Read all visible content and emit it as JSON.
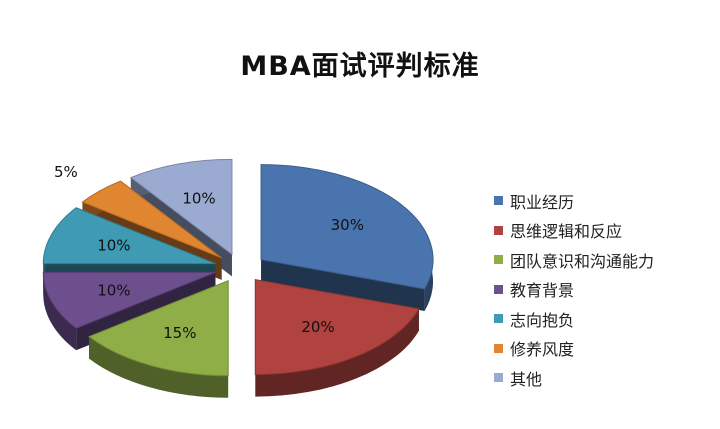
{
  "chart_data": {
    "type": "pie",
    "title": "MBA面试评判标准",
    "categories": [
      "职业经历",
      "思维逻辑和反应",
      "团队意识和沟通能力",
      "教育背景",
      "志向抱负",
      "修养风度",
      "其他"
    ],
    "values": [
      30,
      20,
      15,
      10,
      10,
      5,
      10
    ],
    "value_labels": [
      "30%",
      "20%",
      "15%",
      "10%",
      "10%",
      "5%",
      "10%"
    ],
    "colors": [
      "#4A74AE",
      "#B0433F",
      "#8FAE48",
      "#6D4F8E",
      "#3E9BB3",
      "#E08530",
      "#9AAAD0"
    ],
    "style": "3d-exploded",
    "legend_position": "right"
  }
}
